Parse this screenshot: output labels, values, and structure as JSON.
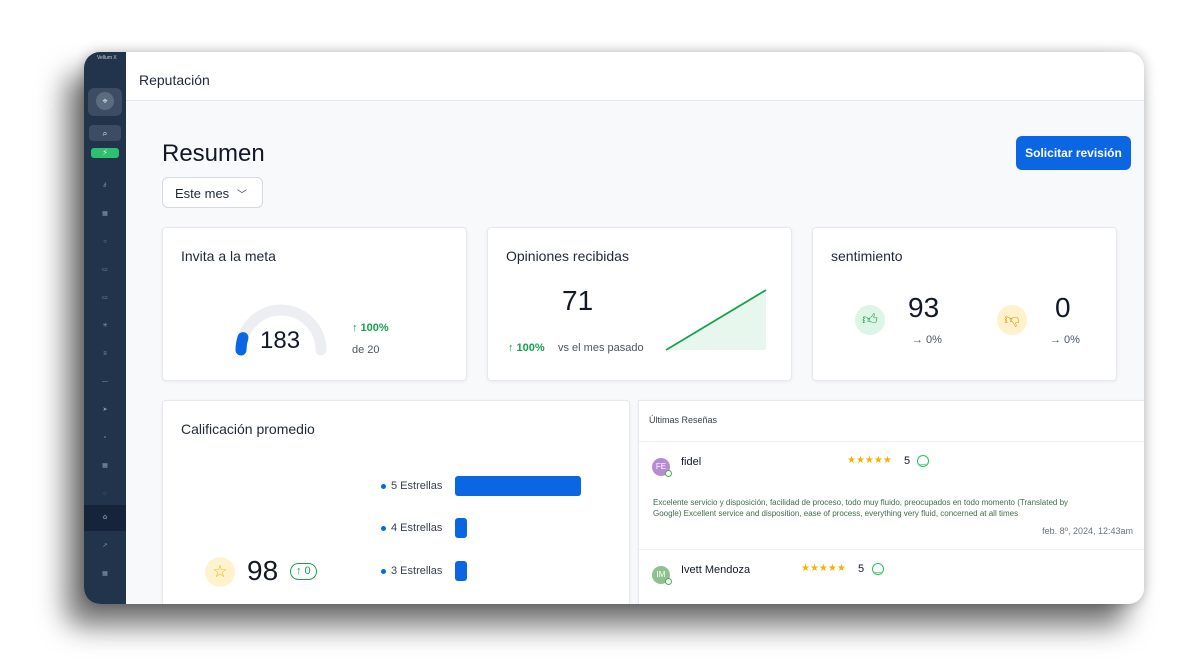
{
  "sidebar": {
    "brand": "Vellum X",
    "logo_icon": "crosshair-icon",
    "items": [
      {
        "name": "link-icon"
      },
      {
        "name": "grid-icon"
      },
      {
        "name": "chat-icon"
      },
      {
        "name": "calendar-icon"
      },
      {
        "name": "document-icon"
      },
      {
        "name": "settings-icon"
      },
      {
        "name": "list-icon"
      },
      {
        "name": "minus-icon"
      },
      {
        "name": "send-icon"
      },
      {
        "name": "tag-icon"
      },
      {
        "name": "table-icon"
      },
      {
        "name": "bell-icon"
      },
      {
        "name": "star-icon",
        "active": true
      },
      {
        "name": "chart-icon"
      },
      {
        "name": "apps-icon"
      }
    ]
  },
  "topbar": {
    "title": "Reputación"
  },
  "summary": {
    "title": "Resumen",
    "period": "Este mes",
    "request_button": "Solicitar revisión"
  },
  "card_goal": {
    "title": "Invita a la meta",
    "value": "183",
    "change": "↑ 100%",
    "of_label": "de 20",
    "gauge_fraction": 0.1
  },
  "card_reviews": {
    "title": "Opiniones recibidas",
    "value": "71",
    "change": "↑ 100%",
    "compare": "vs el mes pasado"
  },
  "card_sentiment": {
    "title": "sentimiento",
    "positive": {
      "value": "93",
      "change": "→ 0%"
    },
    "negative": {
      "value": "0",
      "change": "→ 0%"
    },
    "positive_color": "#22c55e",
    "negative_color": "#f5b301"
  },
  "card_rating": {
    "title": "Calificación promedio",
    "value": "98",
    "badge": "↑ 0",
    "bars": [
      {
        "label": "5 Estrellas",
        "fraction": 1.0
      },
      {
        "label": "4 Estrellas",
        "fraction": 0.09
      },
      {
        "label": "3 Estrellas",
        "fraction": 0.09
      }
    ]
  },
  "latest_reviews": {
    "title": "Últimas Reseñas",
    "items": [
      {
        "initials": "FE",
        "avatar_color": "#b58bd6",
        "name": "fidel",
        "stars": "★★★★★",
        "score": "5",
        "text": "Excelente servicio y disposición, facilidad de proceso, todo muy fluido, preocupados en todo momento (Translated by Google) Excellent service and disposition, ease of process, everything very fluid, concerned at all times",
        "date": "feb. 8º, 2024, 12:43am"
      },
      {
        "initials": "IM",
        "avatar_color": "#8fc18f",
        "name": "Ivett Mendoza",
        "stars": "★★★★★",
        "score": "5"
      }
    ]
  },
  "colors": {
    "accent": "#0b66e4",
    "positive": "#16a34a",
    "sidebar": "#22344c"
  }
}
